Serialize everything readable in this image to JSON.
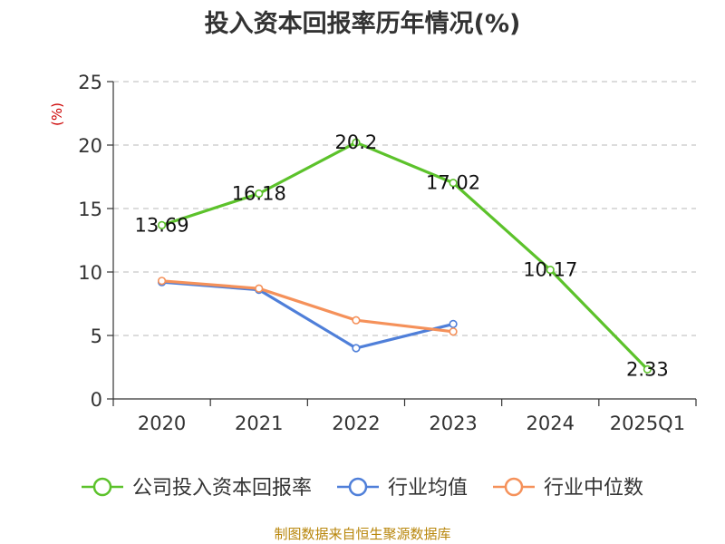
{
  "chart_data": {
    "type": "line",
    "title": "投入资本回报率历年情况(%)",
    "ylabel": "(%)",
    "categories": [
      "2020",
      "2021",
      "2022",
      "2023",
      "2024",
      "2025Q1"
    ],
    "ylim": [
      0,
      25
    ],
    "yticks": [
      0,
      5,
      10,
      15,
      20,
      25
    ],
    "grid": true,
    "legend_position": "bottom",
    "series": [
      {
        "name": "公司投入资本回报率",
        "color": "#5cc22b",
        "values": [
          13.69,
          16.18,
          20.2,
          17.02,
          10.17,
          2.33
        ],
        "labels": [
          "13.69",
          "16.18",
          "20.2",
          "17.02",
          "10.17",
          "2.33"
        ]
      },
      {
        "name": "行业均值",
        "color": "#4f7fd9",
        "values": [
          9.2,
          8.6,
          4.0,
          5.9,
          null,
          null
        ]
      },
      {
        "name": "行业中位数",
        "color": "#f5915a",
        "values": [
          9.3,
          8.7,
          6.2,
          5.3,
          null,
          null
        ]
      }
    ]
  },
  "source": "制图数据来自恒生聚源数据库"
}
